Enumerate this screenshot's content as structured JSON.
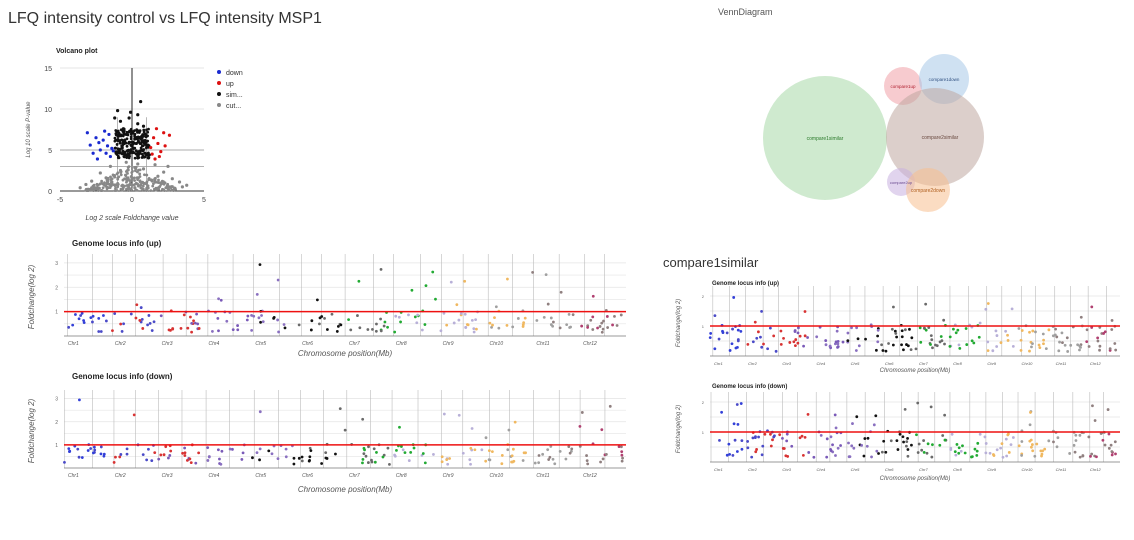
{
  "page": {
    "title": "LFQ intensity control vs LFQ intensity MSP1",
    "venn_title": "VennDiagram",
    "section_title": "compare1similar"
  },
  "colors": {
    "up": "#dd1111",
    "down": "#1a2ad0",
    "sim": "#111111",
    "cut": "#888888",
    "threshold": "#ee1111",
    "grid": "#bbbbbb",
    "chrom_palette": [
      "#3340d8",
      "#4a4ac8",
      "#d83333",
      "#7a5ab8",
      "#8a70c0",
      "#111111",
      "#6a6a6a",
      "#22aa33",
      "#b8b0d8",
      "#f0b860",
      "#a0a0a0",
      "#908080",
      "#b04070",
      "#e060d0",
      "#30b8e0",
      "#e0a020"
    ]
  },
  "chart_data": [
    {
      "id": "volcano",
      "type": "scatter",
      "title": "Volcano plot",
      "xlabel": "Log 2 scale Foldchange value",
      "ylabel": "Log 10 scale P-value",
      "xlim": [
        -5,
        5
      ],
      "ylim": [
        0,
        15
      ],
      "xticks": [
        "-5",
        "0",
        "5"
      ],
      "yticks": [
        "0",
        "5",
        "10",
        "15"
      ],
      "legend": [
        "down",
        "up",
        "sim...",
        "cut..."
      ],
      "legend_position": "right",
      "thresholds": {
        "x": [
          -1,
          1
        ],
        "y": [
          3,
          5
        ]
      },
      "series": [
        {
          "name": "down",
          "color_key": "down",
          "points": [
            [
              -3.1,
              7.1
            ],
            [
              -2.5,
              6.5
            ],
            [
              -2.3,
              5.9
            ],
            [
              -2.2,
              5.0
            ],
            [
              -2.0,
              6.2
            ],
            [
              -1.8,
              4.6
            ],
            [
              -1.7,
              5.5
            ],
            [
              -1.6,
              6.9
            ],
            [
              -1.5,
              4.2
            ],
            [
              -1.4,
              5.2
            ],
            [
              -2.7,
              4.6
            ],
            [
              -2.9,
              5.6
            ],
            [
              -1.9,
              7.3
            ],
            [
              -1.3,
              4.9
            ],
            [
              -2.4,
              3.9
            ]
          ]
        },
        {
          "name": "up",
          "color_key": "up",
          "points": [
            [
              1.5,
              6.5
            ],
            [
              1.8,
              5.8
            ],
            [
              2.0,
              4.8
            ],
            [
              2.2,
              7.1
            ],
            [
              1.4,
              4.5
            ],
            [
              1.7,
              7.6
            ],
            [
              2.6,
              6.8
            ],
            [
              1.3,
              5.3
            ],
            [
              1.9,
              4.2
            ],
            [
              2.3,
              5.5
            ],
            [
              1.6,
              3.9
            ]
          ]
        },
        {
          "name": "sim...",
          "color_key": "sim",
          "points": [
            [
              -1.0,
              9.8
            ],
            [
              -0.8,
              8.5
            ],
            [
              -0.6,
              7.6
            ],
            [
              -0.4,
              6.9
            ],
            [
              -0.2,
              8.9
            ],
            [
              0.0,
              7.2
            ],
            [
              0.2,
              6.4
            ],
            [
              0.4,
              8.2
            ],
            [
              0.6,
              10.9
            ],
            [
              0.8,
              7.9
            ],
            [
              1.0,
              6.7
            ],
            [
              -1.2,
              8.9
            ],
            [
              -0.9,
              7.0
            ],
            [
              -0.5,
              6.1
            ],
            [
              0.3,
              5.8
            ],
            [
              0.7,
              6.0
            ],
            [
              1.1,
              5.6
            ],
            [
              -0.7,
              5.5
            ],
            [
              0.1,
              5.2
            ],
            [
              -0.3,
              4.9
            ],
            [
              0.5,
              4.8
            ],
            [
              0.9,
              4.6
            ],
            [
              -1.1,
              4.6
            ],
            [
              1.2,
              4.4
            ],
            [
              -0.1,
              9.6
            ],
            [
              0.4,
              9.3
            ]
          ]
        },
        {
          "name": "cut...",
          "color_key": "cut",
          "points": [
            [
              -2.2,
              2.2
            ],
            [
              -1.8,
              1.6
            ],
            [
              -1.4,
              1.1
            ],
            [
              -1.0,
              0.8
            ],
            [
              -0.6,
              0.5
            ],
            [
              -0.2,
              0.3
            ],
            [
              0.2,
              0.4
            ],
            [
              0.6,
              0.7
            ],
            [
              1.0,
              0.9
            ],
            [
              1.4,
              1.3
            ],
            [
              1.8,
              1.8
            ],
            [
              2.2,
              2.3
            ],
            [
              2.8,
              1.5
            ],
            [
              3.3,
              1.1
            ],
            [
              3.8,
              0.7
            ],
            [
              -2.8,
              1.2
            ],
            [
              -3.2,
              0.8
            ],
            [
              -0.8,
              2.5
            ],
            [
              0.8,
              2.7
            ],
            [
              0.0,
              1.6
            ],
            [
              -1.5,
              3.0
            ],
            [
              1.6,
              3.2
            ],
            [
              -0.4,
              3.5
            ],
            [
              0.4,
              3.3
            ],
            [
              -3.6,
              0.4
            ],
            [
              3.5,
              0.5
            ],
            [
              2.5,
              3.0
            ]
          ]
        }
      ]
    },
    {
      "id": "venn",
      "type": "venn",
      "sets": [
        {
          "label": "compare1similar",
          "size": 100,
          "color": "#a8d8a8"
        },
        {
          "label": "compare1up",
          "size": 18,
          "color": "#f0a0a8"
        },
        {
          "label": "compare1down",
          "size": 22,
          "color": "#a8c8e8"
        },
        {
          "label": "compare2similar",
          "size": 70,
          "color": "#c0a8a0"
        },
        {
          "label": "compare2up",
          "size": 6,
          "color": "#c8b0e0"
        },
        {
          "label": "compare2down",
          "size": 12,
          "color": "#f8c090"
        }
      ]
    },
    {
      "id": "genome-up-large",
      "type": "scatter",
      "title": "Genome locus info (up)",
      "xlabel": "Chromosome position(Mb)",
      "ylabel": "Foldchange(log 2)",
      "yticks": [
        "1",
        "2",
        "3"
      ],
      "threshold": 1,
      "chromosomes": [
        "Chr1",
        "Chr2",
        "Chr3",
        "Chr4",
        "Chr5",
        "Chr6",
        "Chr7",
        "Chr8",
        "Chr9",
        "Chr10",
        "Chr11",
        "Chr12"
      ]
    },
    {
      "id": "genome-down-large",
      "type": "scatter",
      "title": "Genome locus info (down)",
      "xlabel": "Chromosome position(Mb)",
      "ylabel": "Foldchange(log 2)",
      "yticks": [
        "1",
        "2",
        "3"
      ],
      "threshold": 1,
      "chromosomes": [
        "Chr1",
        "Chr2",
        "Chr3",
        "Chr4",
        "Chr5",
        "Chr6",
        "Chr7",
        "Chr8",
        "Chr9",
        "Chr10",
        "Chr11",
        "Chr12"
      ]
    },
    {
      "id": "genome-up-small",
      "type": "scatter",
      "title": "Genome locus info (up)",
      "xlabel": "Chromosome position(Mb)",
      "ylabel": "Foldchange(log 2)",
      "yticks": [
        "1",
        "2"
      ],
      "threshold": 1,
      "chromosomes": [
        "Chr1",
        "Chr2",
        "Chr3",
        "Chr4",
        "Chr5",
        "Chr6",
        "Chr7",
        "Chr8",
        "Chr9",
        "Chr10",
        "Chr11",
        "Chr12"
      ]
    },
    {
      "id": "genome-down-small",
      "type": "scatter",
      "title": "Genome locus info (down)",
      "xlabel": "Chromosome position(Mb)",
      "ylabel": "Foldchange(log 2)",
      "yticks": [
        "1",
        "2"
      ],
      "threshold": 1,
      "chromosomes": [
        "Chr1",
        "Chr2",
        "Chr3",
        "Chr4",
        "Chr5",
        "Chr6",
        "Chr7",
        "Chr8",
        "Chr9",
        "Chr10",
        "Chr11",
        "Chr12"
      ]
    }
  ]
}
